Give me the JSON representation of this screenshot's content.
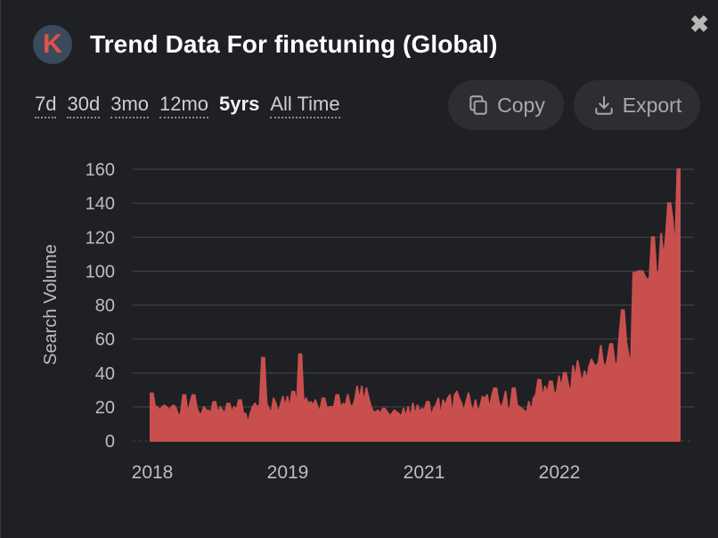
{
  "header": {
    "logo_letter": "K",
    "title": "Trend Data For finetuning (Global)",
    "close_glyph": "✖"
  },
  "ranges": [
    {
      "label": "7d",
      "active": false
    },
    {
      "label": "30d",
      "active": false
    },
    {
      "label": "3mo",
      "active": false
    },
    {
      "label": "12mo",
      "active": false
    },
    {
      "label": "5yrs",
      "active": true
    },
    {
      "label": "All Time",
      "active": false
    }
  ],
  "actions": {
    "copy_label": "Copy",
    "copy_icon": "copy-icon",
    "export_label": "Export",
    "export_icon": "download-icon"
  },
  "colors": {
    "background": "#1f2024",
    "bar": "#c94f4f",
    "grid": "#45464b",
    "button_bg": "#2d2e33"
  },
  "chart_data": {
    "type": "area",
    "xlabel": "",
    "ylabel": "Search Volume",
    "ylim": [
      0,
      160
    ],
    "yticks": [
      0,
      20,
      40,
      60,
      80,
      100,
      120,
      140,
      160
    ],
    "xticks": [
      "2018",
      "2019",
      "2021",
      "2022"
    ],
    "grid": true,
    "series": [
      {
        "values": [
          28,
          28,
          20,
          20,
          18,
          20,
          21,
          20,
          18,
          20,
          21,
          19,
          15,
          16,
          27,
          27,
          16,
          22,
          27,
          27,
          19,
          16,
          16,
          20,
          18,
          18,
          16,
          23,
          23,
          16,
          20,
          18,
          16,
          22,
          22,
          17,
          20,
          18,
          24,
          24,
          16,
          16,
          10,
          16,
          20,
          22,
          20,
          21,
          49,
          49,
          22,
          19,
          16,
          25,
          22,
          16,
          21,
          26,
          20,
          26,
          19,
          29,
          29,
          20,
          51,
          51,
          22,
          25,
          22,
          23,
          21,
          24,
          20,
          17,
          25,
          25,
          19,
          20,
          20,
          20,
          27,
          27,
          19,
          22,
          21,
          27,
          21,
          20,
          24,
          32,
          24,
          32,
          22,
          31,
          25,
          20,
          17,
          17,
          18,
          16,
          19,
          19,
          17,
          15,
          16,
          18,
          17,
          16,
          14,
          19,
          14,
          20,
          13,
          22,
          15,
          21,
          17,
          19,
          18,
          23,
          23,
          14,
          19,
          21,
          25,
          14,
          24,
          21,
          25,
          27,
          14,
          27,
          29,
          25,
          22,
          17,
          23,
          28,
          21,
          17,
          24,
          17,
          20,
          26,
          25,
          27,
          19,
          26,
          31,
          31,
          23,
          19,
          23,
          29,
          17,
          20,
          31,
          31,
          21,
          20,
          19,
          18,
          16,
          23,
          17,
          25,
          27,
          36,
          36,
          25,
          32,
          28,
          35,
          35,
          27,
          29,
          38,
          31,
          40,
          40,
          33,
          27,
          44,
          37,
          47,
          40,
          34,
          41,
          36,
          44,
          48,
          45,
          44,
          46,
          56,
          46,
          43,
          49,
          57,
          57,
          46,
          44,
          62,
          77,
          77,
          58,
          50,
          46,
          99,
          99,
          100,
          100,
          100,
          97,
          95,
          96,
          120,
          120,
          98,
          100,
          122,
          107,
          120,
          140,
          140,
          130,
          110,
          160,
          160
        ]
      }
    ]
  }
}
